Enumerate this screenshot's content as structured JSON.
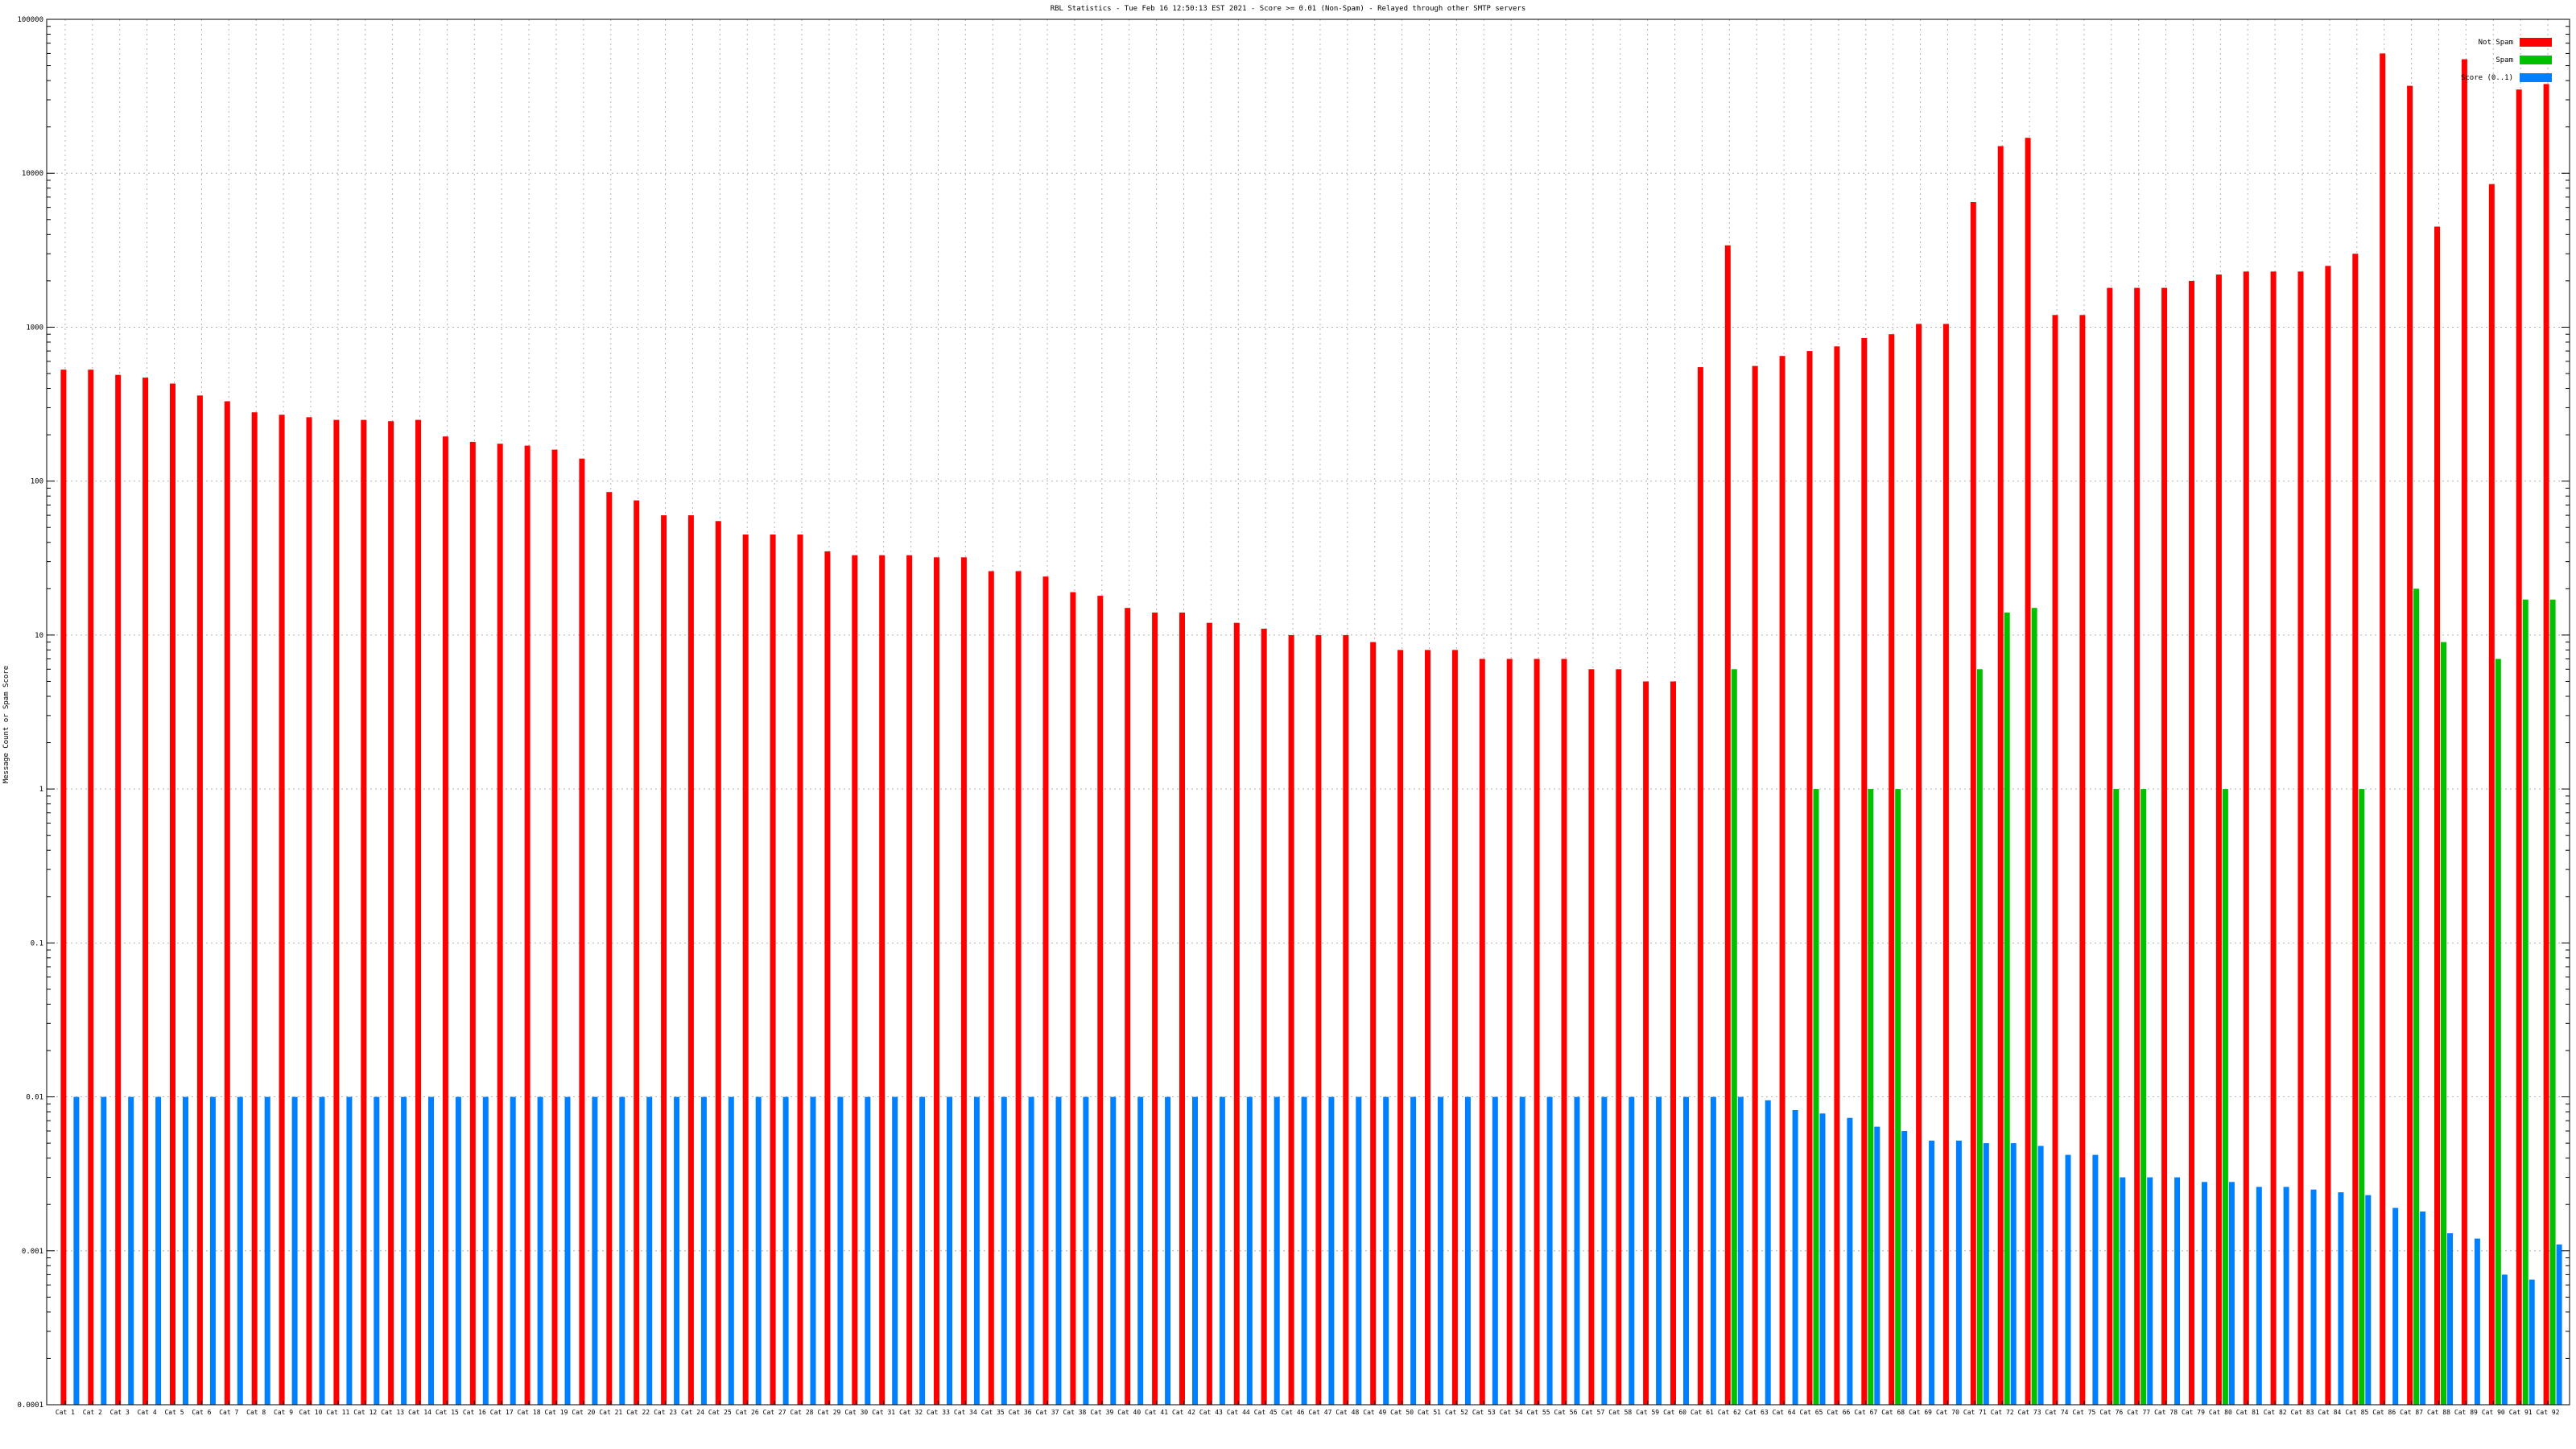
{
  "chart_data": {
    "type": "bar",
    "title": "RBL Statistics - Tue Feb 16 12:50:13 EST 2021 - Score >= 0.01 (Non-Spam) - Relayed through other SMTP servers",
    "ylabel": "Message Count or Spam Score",
    "xlabel": "",
    "yscale": "log",
    "ylim": [
      0.0001,
      100000
    ],
    "yticks": [
      "0.0001",
      "0.001",
      "0.01",
      "0.1",
      "1",
      "10",
      "100",
      "1000",
      "10000",
      "100000"
    ],
    "grid": true,
    "legend_position": "top-right",
    "colors": {
      "not_spam": "#ff0000",
      "spam": "#00c000",
      "score": "#0080ff"
    },
    "categories": [
      "Cat 1",
      "Cat 2",
      "Cat 3",
      "Cat 4",
      "Cat 5",
      "Cat 6",
      "Cat 7",
      "Cat 8",
      "Cat 9",
      "Cat 10",
      "Cat 11",
      "Cat 12",
      "Cat 13",
      "Cat 14",
      "Cat 15",
      "Cat 16",
      "Cat 17",
      "Cat 18",
      "Cat 19",
      "Cat 20",
      "Cat 21",
      "Cat 22",
      "Cat 23",
      "Cat 24",
      "Cat 25",
      "Cat 26",
      "Cat 27",
      "Cat 28",
      "Cat 29",
      "Cat 30",
      "Cat 31",
      "Cat 32",
      "Cat 33",
      "Cat 34",
      "Cat 35",
      "Cat 36",
      "Cat 37",
      "Cat 38",
      "Cat 39",
      "Cat 40",
      "Cat 41",
      "Cat 42",
      "Cat 43",
      "Cat 44",
      "Cat 45",
      "Cat 46",
      "Cat 47",
      "Cat 48",
      "Cat 49",
      "Cat 50",
      "Cat 51",
      "Cat 52",
      "Cat 53",
      "Cat 54",
      "Cat 55",
      "Cat 56",
      "Cat 57",
      "Cat 58",
      "Cat 59",
      "Cat 60",
      "Cat 61",
      "Cat 62",
      "Cat 63",
      "Cat 64",
      "Cat 65",
      "Cat 66",
      "Cat 67",
      "Cat 68",
      "Cat 69",
      "Cat 70",
      "Cat 71",
      "Cat 72",
      "Cat 73",
      "Cat 74",
      "Cat 75",
      "Cat 76",
      "Cat 77",
      "Cat 78",
      "Cat 79",
      "Cat 80",
      "Cat 81",
      "Cat 82",
      "Cat 83",
      "Cat 84",
      "Cat 85",
      "Cat 86",
      "Cat 87",
      "Cat 88",
      "Cat 89",
      "Cat 90",
      "Cat 91",
      "Cat 92"
    ],
    "series": [
      {
        "name": "Not Spam",
        "values": [
          530,
          530,
          490,
          470,
          430,
          360,
          330,
          280,
          270,
          260,
          250,
          250,
          245,
          250,
          195,
          180,
          175,
          170,
          160,
          140,
          85,
          75,
          60,
          60,
          55,
          45,
          45,
          45,
          35,
          33,
          33,
          33,
          32,
          32,
          26,
          26,
          24,
          19,
          18,
          15,
          14,
          14,
          12,
          12,
          11,
          10,
          10,
          10,
          9,
          8,
          8,
          8,
          7,
          7,
          7,
          7,
          6,
          6,
          5,
          5,
          550,
          3400,
          560,
          650,
          700,
          750,
          850,
          900,
          1050,
          1050,
          6500,
          15000,
          17000,
          1200,
          1200,
          1800,
          1800,
          1800,
          2000,
          2200,
          2300,
          2300,
          2300,
          2500,
          3000,
          60000,
          37000,
          4500,
          55000,
          8500,
          35000,
          38000
        ]
      },
      {
        "name": "Spam",
        "values": [
          0,
          0,
          0,
          0,
          0,
          0,
          0,
          0,
          0,
          0,
          0,
          0,
          0,
          0,
          0,
          0,
          0,
          0,
          0,
          0,
          0,
          0,
          0,
          0,
          0,
          0,
          0,
          0,
          0,
          0,
          0,
          0,
          0,
          0,
          0,
          0,
          0,
          0,
          0,
          0,
          0,
          0,
          0,
          0,
          0,
          0,
          0,
          0,
          0,
          0,
          0,
          0,
          0,
          0,
          0,
          0,
          0,
          0,
          0,
          0,
          0,
          6,
          0,
          0,
          1,
          0,
          1,
          1,
          0,
          0,
          6,
          14,
          15,
          0,
          0,
          1,
          1,
          0,
          0,
          1,
          0,
          0,
          0,
          0,
          1,
          0,
          20,
          9,
          0,
          7,
          17,
          17
        ]
      },
      {
        "name": "Score (0..1)",
        "values": [
          0.01,
          0.01,
          0.01,
          0.01,
          0.01,
          0.01,
          0.01,
          0.01,
          0.01,
          0.01,
          0.01,
          0.01,
          0.01,
          0.01,
          0.01,
          0.01,
          0.01,
          0.01,
          0.01,
          0.01,
          0.01,
          0.01,
          0.01,
          0.01,
          0.01,
          0.01,
          0.01,
          0.01,
          0.01,
          0.01,
          0.01,
          0.01,
          0.01,
          0.01,
          0.01,
          0.01,
          0.01,
          0.01,
          0.01,
          0.01,
          0.01,
          0.01,
          0.01,
          0.01,
          0.01,
          0.01,
          0.01,
          0.01,
          0.01,
          0.01,
          0.01,
          0.01,
          0.01,
          0.01,
          0.01,
          0.01,
          0.01,
          0.01,
          0.01,
          0.01,
          0.01,
          0.01,
          0.0095,
          0.0082,
          0.0078,
          0.0073,
          0.0064,
          0.006,
          0.0052,
          0.0052,
          0.005,
          0.005,
          0.0048,
          0.0042,
          0.0042,
          0.003,
          0.003,
          0.003,
          0.0028,
          0.0028,
          0.0026,
          0.0026,
          0.0025,
          0.0024,
          0.0023,
          0.0019,
          0.0018,
          0.0013,
          0.0012,
          0.0007,
          0.00065,
          0.0011
        ]
      }
    ]
  }
}
